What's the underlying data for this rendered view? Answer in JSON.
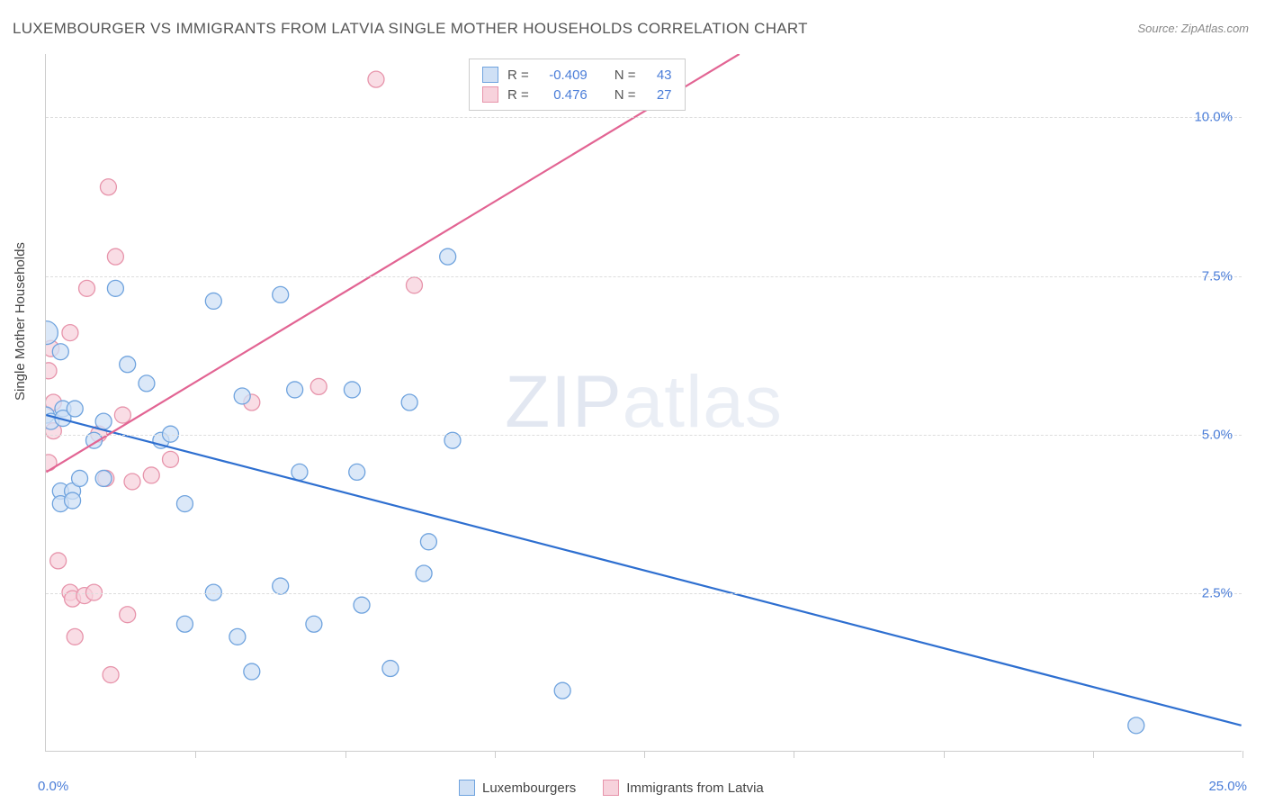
{
  "title": "LUXEMBOURGER VS IMMIGRANTS FROM LATVIA SINGLE MOTHER HOUSEHOLDS CORRELATION CHART",
  "source": "Source: ZipAtlas.com",
  "y_axis_label": "Single Mother Households",
  "watermark_bold": "ZIP",
  "watermark_thin": "atlas",
  "x_min": 0.0,
  "x_max": 25.0,
  "y_min": 0.0,
  "y_max": 11.0,
  "x_label_min": "0.0%",
  "x_label_max": "25.0%",
  "y_ticks": [
    {
      "val": 2.5,
      "label": "2.5%"
    },
    {
      "val": 5.0,
      "label": "5.0%"
    },
    {
      "val": 7.5,
      "label": "7.5%"
    },
    {
      "val": 10.0,
      "label": "10.0%"
    }
  ],
  "x_tick_positions": [
    3.125,
    6.25,
    9.375,
    12.5,
    15.625,
    18.75,
    21.875,
    25.0
  ],
  "series": {
    "blue": {
      "name": "Luxembourgers",
      "color_fill": "#cfe0f5",
      "color_stroke": "#6fa3de",
      "trend_color": "#2e6fd0",
      "r_value": "-0.409",
      "n_value": "43",
      "trend_line": {
        "x1": 0.0,
        "y1": 5.3,
        "x2": 25.0,
        "y2": 0.4
      },
      "points": [
        {
          "x": 0.0,
          "y": 6.6,
          "r": 13
        },
        {
          "x": 0.0,
          "y": 5.3
        },
        {
          "x": 0.1,
          "y": 5.2
        },
        {
          "x": 0.3,
          "y": 6.3
        },
        {
          "x": 0.35,
          "y": 5.4
        },
        {
          "x": 0.35,
          "y": 5.25
        },
        {
          "x": 0.3,
          "y": 4.1
        },
        {
          "x": 0.3,
          "y": 3.9
        },
        {
          "x": 0.6,
          "y": 5.4
        },
        {
          "x": 0.55,
          "y": 4.1
        },
        {
          "x": 0.55,
          "y": 3.95
        },
        {
          "x": 0.7,
          "y": 4.3
        },
        {
          "x": 1.0,
          "y": 4.9
        },
        {
          "x": 1.2,
          "y": 5.2
        },
        {
          "x": 1.2,
          "y": 4.3
        },
        {
          "x": 1.45,
          "y": 7.3
        },
        {
          "x": 1.7,
          "y": 6.1
        },
        {
          "x": 2.1,
          "y": 5.8
        },
        {
          "x": 2.4,
          "y": 4.9
        },
        {
          "x": 2.6,
          "y": 5.0
        },
        {
          "x": 2.9,
          "y": 3.9
        },
        {
          "x": 2.9,
          "y": 2.0
        },
        {
          "x": 3.5,
          "y": 7.1
        },
        {
          "x": 3.5,
          "y": 2.5
        },
        {
          "x": 4.0,
          "y": 1.8
        },
        {
          "x": 4.1,
          "y": 5.6
        },
        {
          "x": 4.3,
          "y": 1.25
        },
        {
          "x": 4.9,
          "y": 7.2
        },
        {
          "x": 4.9,
          "y": 2.6
        },
        {
          "x": 5.2,
          "y": 5.7
        },
        {
          "x": 5.3,
          "y": 4.4
        },
        {
          "x": 5.6,
          "y": 2.0
        },
        {
          "x": 6.4,
          "y": 5.7
        },
        {
          "x": 6.5,
          "y": 4.4
        },
        {
          "x": 6.6,
          "y": 2.3
        },
        {
          "x": 7.2,
          "y": 1.3
        },
        {
          "x": 7.6,
          "y": 5.5
        },
        {
          "x": 7.9,
          "y": 2.8
        },
        {
          "x": 8.0,
          "y": 3.3
        },
        {
          "x": 8.4,
          "y": 7.8
        },
        {
          "x": 8.5,
          "y": 4.9
        },
        {
          "x": 10.8,
          "y": 0.95
        },
        {
          "x": 22.8,
          "y": 0.4
        }
      ]
    },
    "pink": {
      "name": "Immigrants from Latvia",
      "color_fill": "#f7d2dc",
      "color_stroke": "#e794ab",
      "trend_color": "#e26493",
      "r_value": "0.476",
      "n_value": "27",
      "trend_line": {
        "x1": 0.0,
        "y1": 4.4,
        "x2": 14.5,
        "y2": 11.0
      },
      "points": [
        {
          "x": 0.05,
          "y": 6.0
        },
        {
          "x": 0.05,
          "y": 4.55
        },
        {
          "x": 0.1,
          "y": 6.35
        },
        {
          "x": 0.15,
          "y": 5.5
        },
        {
          "x": 0.15,
          "y": 5.05
        },
        {
          "x": 0.25,
          "y": 3.0
        },
        {
          "x": 0.5,
          "y": 6.6
        },
        {
          "x": 0.5,
          "y": 2.5
        },
        {
          "x": 0.55,
          "y": 2.4
        },
        {
          "x": 0.6,
          "y": 1.8
        },
        {
          "x": 0.8,
          "y": 2.45
        },
        {
          "x": 0.85,
          "y": 7.3
        },
        {
          "x": 1.0,
          "y": 2.5
        },
        {
          "x": 1.1,
          "y": 5.0
        },
        {
          "x": 1.25,
          "y": 4.3
        },
        {
          "x": 1.3,
          "y": 8.9
        },
        {
          "x": 1.35,
          "y": 1.2
        },
        {
          "x": 1.45,
          "y": 7.8
        },
        {
          "x": 1.6,
          "y": 5.3
        },
        {
          "x": 1.7,
          "y": 2.15
        },
        {
          "x": 1.8,
          "y": 4.25
        },
        {
          "x": 2.2,
          "y": 4.35
        },
        {
          "x": 2.6,
          "y": 4.6
        },
        {
          "x": 4.3,
          "y": 5.5
        },
        {
          "x": 5.7,
          "y": 5.75
        },
        {
          "x": 6.9,
          "y": 10.6
        },
        {
          "x": 7.7,
          "y": 7.35
        }
      ]
    }
  },
  "legend_top": {
    "r_label": "R =",
    "n_label": "N ="
  },
  "marker_radius": 9,
  "marker_stroke_width": 1.3,
  "trend_stroke_width": 2.2,
  "background_color": "#ffffff",
  "grid_color": "#dddddd"
}
